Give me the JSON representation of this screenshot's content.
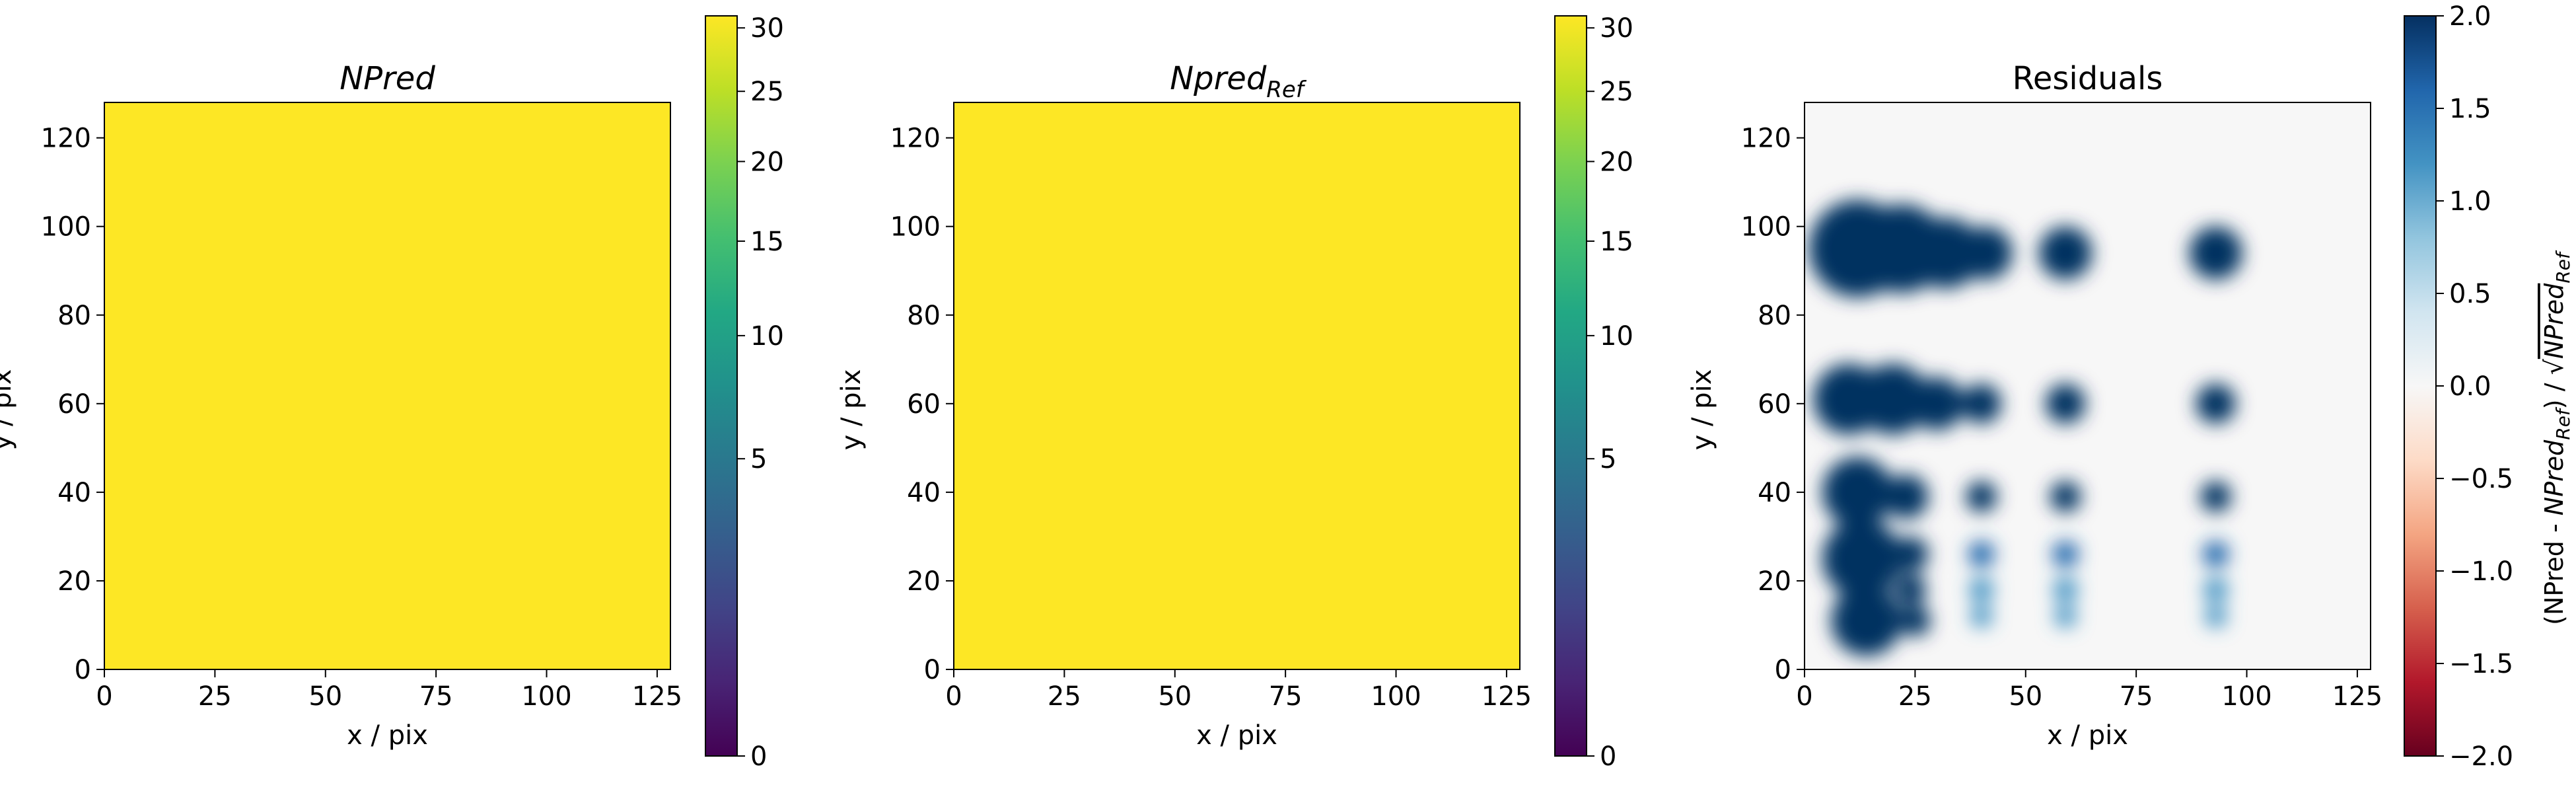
{
  "chart_data": [
    {
      "type": "heatmap",
      "title": "NPred",
      "title_style": "italic",
      "xlabel": "x / pix",
      "ylabel": "y / pix",
      "xlim": [
        0,
        128
      ],
      "ylim": [
        0,
        128
      ],
      "xticks": [
        0,
        25,
        50,
        75,
        100,
        125
      ],
      "yticks": [
        0,
        20,
        40,
        60,
        80,
        100,
        120
      ],
      "fill": "uniform",
      "fill_value": 30,
      "fill_color": "#fde725",
      "colormap": "viridis",
      "colorbar": {
        "scale": "power",
        "range": [
          0,
          31
        ],
        "ticks": [
          0,
          5,
          10,
          15,
          20,
          25,
          30
        ],
        "label": ""
      }
    },
    {
      "type": "heatmap",
      "title_main": "Npred",
      "title_sub": "Ref",
      "title_style": "italic",
      "xlabel": "x / pix",
      "ylabel": "y / pix",
      "xlim": [
        0,
        128
      ],
      "ylim": [
        0,
        128
      ],
      "xticks": [
        0,
        25,
        50,
        75,
        100,
        125
      ],
      "yticks": [
        0,
        20,
        40,
        60,
        80,
        100,
        120
      ],
      "fill": "uniform",
      "fill_value": 30,
      "fill_color": "#fde725",
      "colormap": "viridis",
      "colorbar": {
        "scale": "power",
        "range": [
          0,
          31
        ],
        "ticks": [
          0,
          5,
          10,
          15,
          20,
          25,
          30
        ],
        "label": ""
      }
    },
    {
      "type": "heatmap",
      "title": "Residuals",
      "xlabel": "x / pix",
      "ylabel": "y / pix",
      "xlim": [
        0,
        128
      ],
      "ylim": [
        0,
        128
      ],
      "xticks": [
        0,
        25,
        50,
        75,
        100,
        125
      ],
      "yticks": [
        0,
        20,
        40,
        60,
        80,
        100,
        120
      ],
      "background_value": 0.0,
      "colormap": "RdBu",
      "blobs": [
        {
          "x": 12,
          "y": 95,
          "r": 11,
          "v": 2.0
        },
        {
          "x": 22,
          "y": 95,
          "r": 10,
          "v": 2.0
        },
        {
          "x": 32,
          "y": 94,
          "r": 8,
          "v": 2.0
        },
        {
          "x": 41,
          "y": 94,
          "r": 6,
          "v": 2.0
        },
        {
          "x": 59,
          "y": 94,
          "r": 6,
          "v": 2.0
        },
        {
          "x": 93,
          "y": 94,
          "r": 6,
          "v": 2.0
        },
        {
          "x": 10,
          "y": 61,
          "r": 8,
          "v": 2.0
        },
        {
          "x": 20,
          "y": 61,
          "r": 8,
          "v": 2.0
        },
        {
          "x": 30,
          "y": 60,
          "r": 6,
          "v": 2.0
        },
        {
          "x": 40,
          "y": 60,
          "r": 4.5,
          "v": 2.0
        },
        {
          "x": 59,
          "y": 60,
          "r": 4.5,
          "v": 2.0
        },
        {
          "x": 93,
          "y": 60,
          "r": 4.5,
          "v": 2.0
        },
        {
          "x": 12,
          "y": 40,
          "r": 8,
          "v": 2.0
        },
        {
          "x": 13,
          "y": 25,
          "r": 9,
          "v": 2.0
        },
        {
          "x": 14,
          "y": 11,
          "r": 8,
          "v": 2.0
        },
        {
          "x": 23,
          "y": 39,
          "r": 5,
          "v": 2.0
        },
        {
          "x": 24,
          "y": 26,
          "r": 4,
          "v": 2.0
        },
        {
          "x": 24,
          "y": 18,
          "r": 3.5,
          "v": 2.0
        },
        {
          "x": 25,
          "y": 11,
          "r": 3.5,
          "v": 2.0
        },
        {
          "x": 40,
          "y": 39,
          "r": 3.5,
          "v": 2.0
        },
        {
          "x": 59,
          "y": 39,
          "r": 3.5,
          "v": 2.0
        },
        {
          "x": 93,
          "y": 39,
          "r": 3.5,
          "v": 2.0
        },
        {
          "x": 40,
          "y": 26,
          "r": 3,
          "v": 1.5
        },
        {
          "x": 59,
          "y": 26,
          "r": 3,
          "v": 1.5
        },
        {
          "x": 93,
          "y": 26,
          "r": 3,
          "v": 1.5
        },
        {
          "x": 40,
          "y": 18,
          "r": 2.8,
          "v": 1.2
        },
        {
          "x": 59,
          "y": 18,
          "r": 2.8,
          "v": 1.2
        },
        {
          "x": 93,
          "y": 18,
          "r": 2.8,
          "v": 1.2
        },
        {
          "x": 40,
          "y": 12,
          "r": 2.5,
          "v": 1.0
        },
        {
          "x": 59,
          "y": 12,
          "r": 2.5,
          "v": 1.0
        },
        {
          "x": 93,
          "y": 12,
          "r": 2.5,
          "v": 1.0
        }
      ],
      "colorbar": {
        "scale": "linear",
        "range": [
          -2.0,
          2.0
        ],
        "ticks": [
          2.0,
          1.5,
          1.0,
          0.5,
          0.0,
          -0.5,
          -1.0,
          -1.5,
          -2.0
        ],
        "tick_labels": [
          "2.0",
          "1.5",
          "1.0",
          "0.5",
          "0.0",
          "−0.5",
          "−1.0",
          "−1.5",
          "−2.0"
        ],
        "label_parts": [
          "(NPred - ",
          "NPred",
          "Ref",
          ") / ",
          "√",
          "NPred",
          "Ref"
        ]
      }
    }
  ]
}
